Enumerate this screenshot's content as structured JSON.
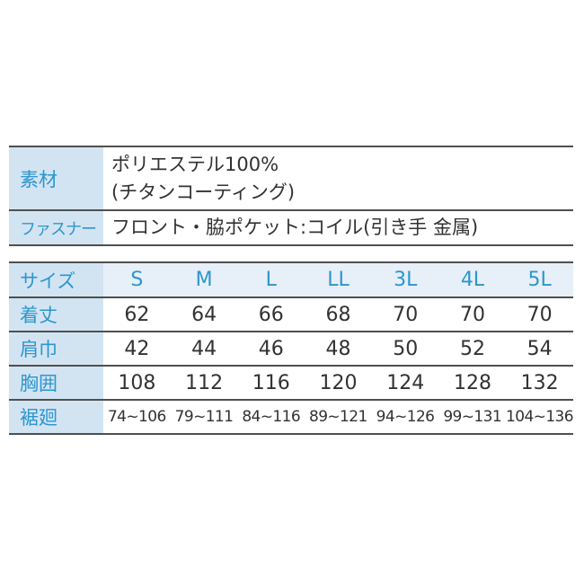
{
  "colors": {
    "label_background": "#d2e4f2",
    "header_row_background": "#e7eff8",
    "accent_blue_text": "#2d96cf",
    "body_text": "#323232",
    "rule_line": "#4f4f4f",
    "page_background": "#ffffff"
  },
  "spec_table": {
    "rows": [
      {
        "label": "素材",
        "value_lines": [
          "ポリエステル100%",
          "(チタンコーティング)"
        ]
      },
      {
        "label": "ファスナー",
        "value_lines": [
          "フロント・脇ポケット:コイル(引き手 金属)"
        ]
      }
    ]
  },
  "size_table": {
    "header_label": "サイズ",
    "sizes": [
      "S",
      "M",
      "L",
      "LL",
      "3L",
      "4L",
      "5L"
    ],
    "rows": [
      {
        "label": "着丈",
        "values": [
          "62",
          "64",
          "66",
          "68",
          "70",
          "70",
          "70"
        ]
      },
      {
        "label": "肩巾",
        "values": [
          "42",
          "44",
          "46",
          "48",
          "50",
          "52",
          "54"
        ]
      },
      {
        "label": "胸囲",
        "values": [
          "108",
          "112",
          "116",
          "120",
          "124",
          "128",
          "132"
        ]
      },
      {
        "label": "裾廻",
        "values": [
          "74~106",
          "79~111",
          "84~116",
          "89~121",
          "94~126",
          "99~131",
          "104~136"
        ]
      }
    ]
  }
}
